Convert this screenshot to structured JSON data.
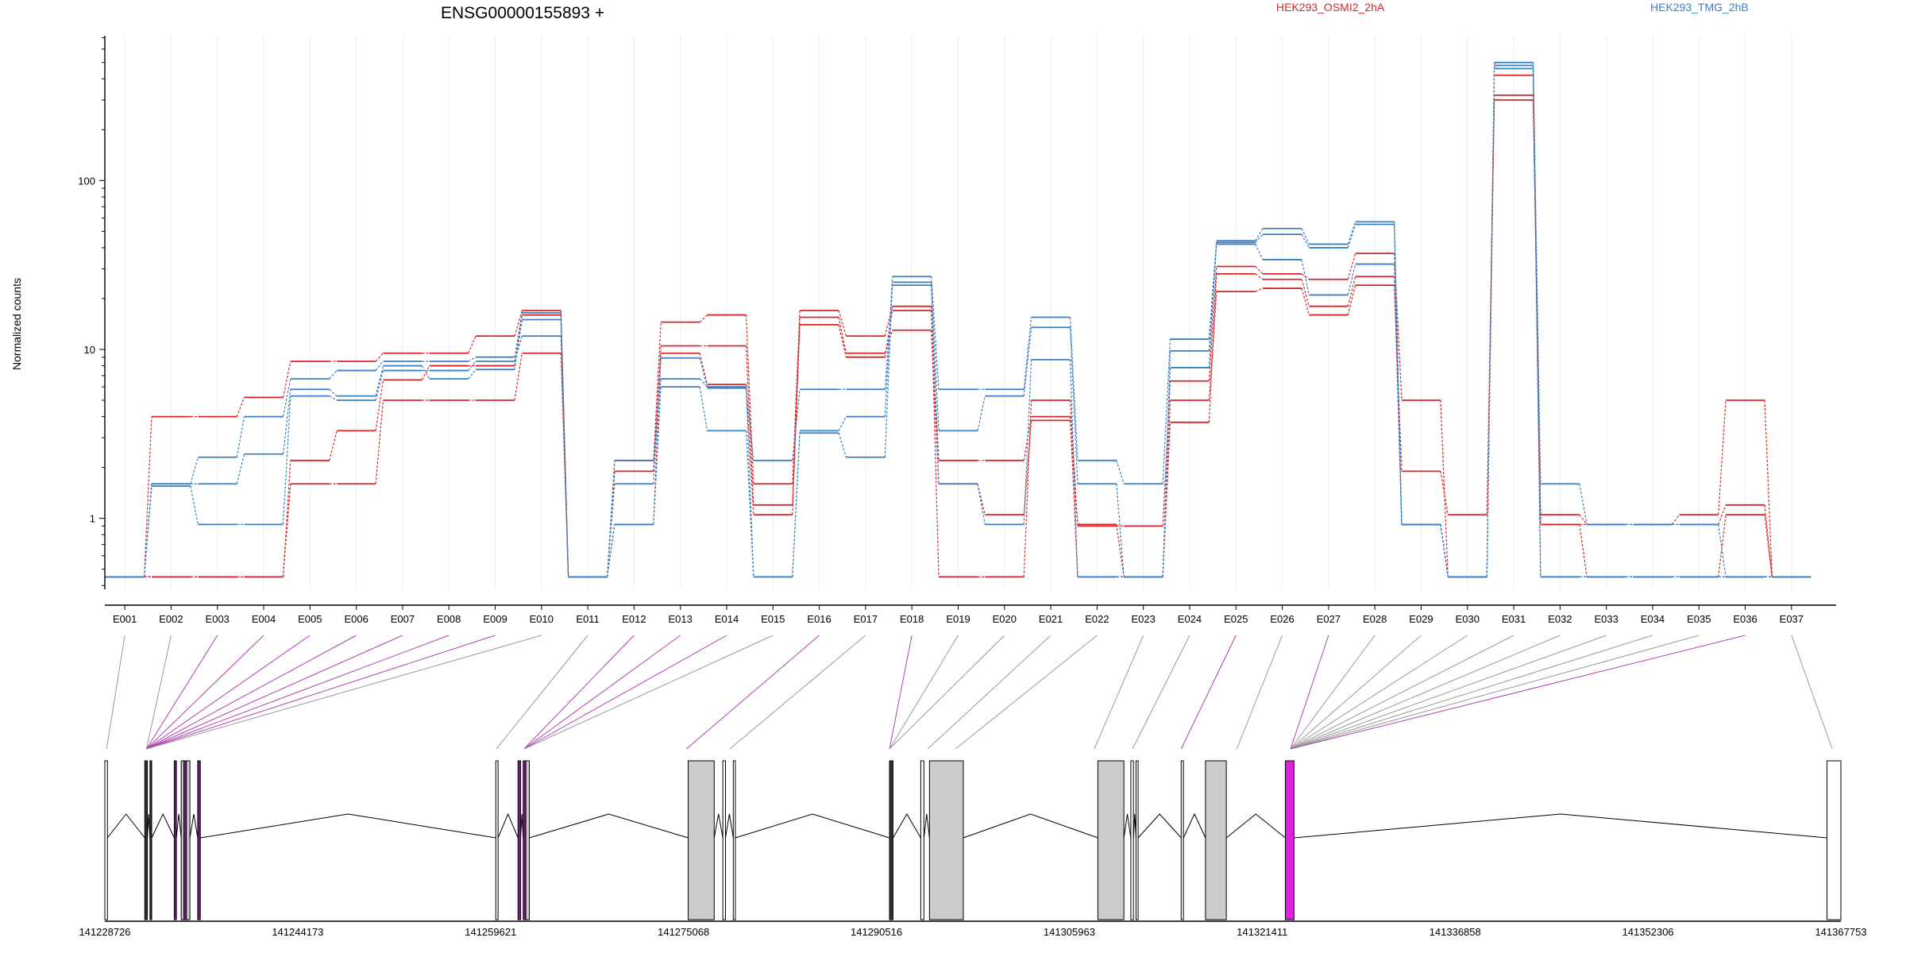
{
  "chart_data": {
    "type": "line",
    "title": "ENSG00000155893 +",
    "ylabel": "Normalized counts",
    "xlabel": "",
    "y_scale": "log",
    "y_ticks": [
      "1",
      "10",
      "100"
    ],
    "grid": true,
    "legend_placement": "top-right",
    "categories": [
      "E001",
      "E002",
      "E003",
      "E004",
      "E005",
      "E006",
      "E007",
      "E008",
      "E009",
      "E010",
      "E011",
      "E012",
      "E013",
      "E014",
      "E015",
      "E016",
      "E017",
      "E018",
      "E019",
      "E020",
      "E021",
      "E022",
      "E023",
      "E024",
      "E025",
      "E026",
      "E027",
      "E028",
      "E029",
      "E030",
      "E031",
      "E032",
      "E033",
      "E034",
      "E035",
      "E036",
      "E037"
    ],
    "conditions": [
      {
        "name": "HEK293_OSMI2_2hA",
        "color": "#d62728"
      },
      {
        "name": "HEK293_TMG_2hB",
        "color": "#3a7fc0"
      }
    ],
    "series": [
      {
        "condition": "HEK293_OSMI2_2hA",
        "values": [
          0.45,
          4.0,
          4.0,
          5.2,
          8.5,
          8.5,
          9.5,
          9.5,
          12.0,
          17.0,
          0.45,
          2.2,
          14.5,
          16.0,
          1.6,
          17.0,
          12.0,
          18.0,
          0.45,
          0.45,
          5.0,
          0.9,
          0.9,
          6.5,
          31.0,
          28.0,
          26.0,
          37.0,
          5.0,
          0.45,
          320,
          1.05,
          0.92,
          0.92,
          1.05,
          5.0,
          0.45
        ]
      },
      {
        "condition": "HEK293_OSMI2_2hA",
        "values": [
          0.45,
          0.45,
          0.45,
          0.45,
          2.2,
          3.3,
          6.6,
          8.0,
          8.0,
          16.0,
          0.45,
          1.9,
          10.5,
          10.5,
          1.2,
          14.0,
          9.0,
          17.0,
          2.2,
          2.2,
          4.0,
          0.45,
          0.45,
          5.0,
          22.0,
          23.0,
          16.0,
          24.0,
          1.9,
          1.05,
          300,
          0.92,
          0.92,
          0.92,
          0.92,
          1.2,
          0.45
        ]
      },
      {
        "condition": "HEK293_OSMI2_2hA",
        "values": [
          0.45,
          0.45,
          0.45,
          0.45,
          1.6,
          1.6,
          5.0,
          5.0,
          5.0,
          9.5,
          0.45,
          0.92,
          9.5,
          6.2,
          1.05,
          15.5,
          9.5,
          13.0,
          1.6,
          1.05,
          3.8,
          0.92,
          0.45,
          3.7,
          28.0,
          26.0,
          18.0,
          27.0,
          0.92,
          0.45,
          420,
          0.92,
          0.45,
          0.45,
          0.45,
          1.05,
          0.45
        ]
      },
      {
        "condition": "HEK293_TMG_2hB",
        "values": [
          0.45,
          1.6,
          2.3,
          4.0,
          6.7,
          7.5,
          8.5,
          8.5,
          9.0,
          16.5,
          0.45,
          2.2,
          6.7,
          6.0,
          0.45,
          3.3,
          4.0,
          27.0,
          5.8,
          5.8,
          15.5,
          2.2,
          1.6,
          11.5,
          44.0,
          52.0,
          42.0,
          57.0,
          0.92,
          0.45,
          500,
          1.6,
          0.92,
          0.92,
          0.92,
          0.45,
          0.45
        ]
      },
      {
        "condition": "HEK293_TMG_2hB",
        "values": [
          0.45,
          1.55,
          0.92,
          0.92,
          5.3,
          5.0,
          7.5,
          7.5,
          8.5,
          12.0,
          0.45,
          1.6,
          8.9,
          5.9,
          2.2,
          5.8,
          5.8,
          24.0,
          3.3,
          5.3,
          13.5,
          1.6,
          0.45,
          7.8,
          43.0,
          48.0,
          40.0,
          55.0,
          0.92,
          0.45,
          480,
          0.45,
          0.45,
          0.45,
          0.45,
          0.45,
          0.45
        ]
      },
      {
        "condition": "HEK293_TMG_2hB",
        "values": [
          0.45,
          1.6,
          1.6,
          2.4,
          5.8,
          5.3,
          8.0,
          6.7,
          7.6,
          15.0,
          0.45,
          0.92,
          6.0,
          3.3,
          0.45,
          3.2,
          2.3,
          25.0,
          1.6,
          0.92,
          8.7,
          0.45,
          0.45,
          9.8,
          42.0,
          34.0,
          21.0,
          32.0,
          0.92,
          0.45,
          460,
          0.45,
          0.45,
          0.45,
          0.45,
          0.45,
          0.45
        ]
      }
    ],
    "genomic_ticks": [
      "141228726",
      "141244173",
      "141259621",
      "141275068",
      "141290516",
      "141305963",
      "141321411",
      "141336858",
      "141352306",
      "141367753"
    ]
  }
}
